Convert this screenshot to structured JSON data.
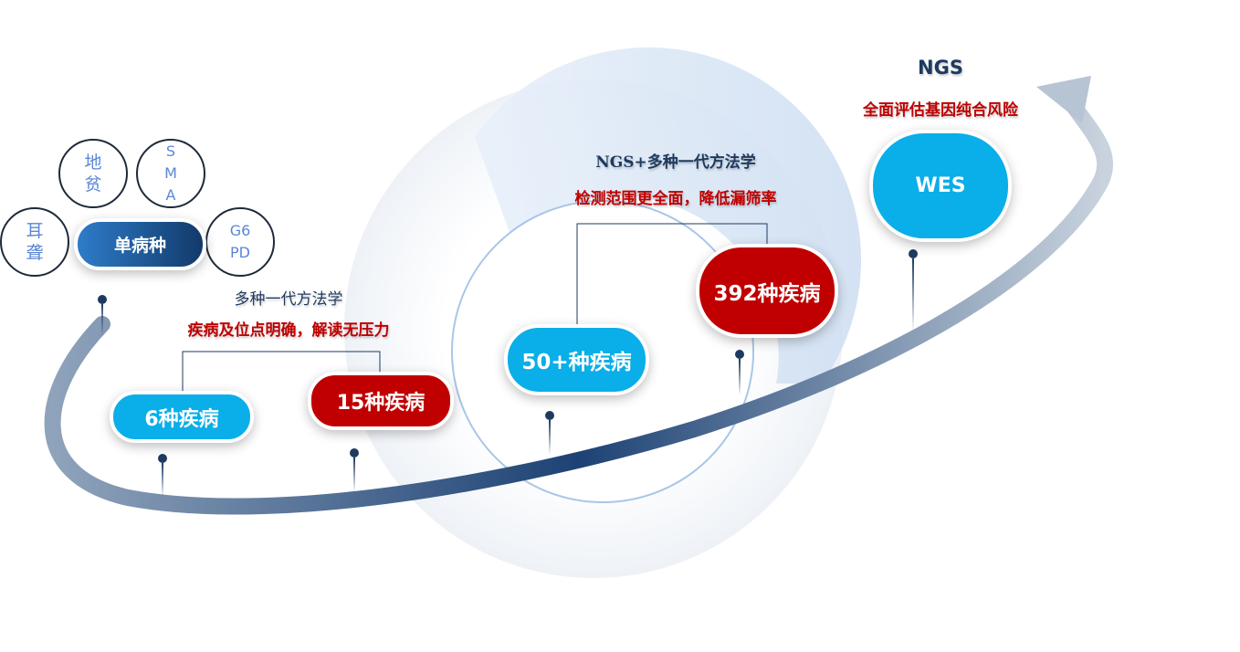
{
  "stage1": {
    "center_label": "单病种",
    "diseases": [
      "地贫",
      "SMA",
      "耳聋",
      "G6PD"
    ],
    "method": "多种一代方法学",
    "benefit": "疾病及位点明确，解读无压力",
    "panels": [
      "6种疾病",
      "15种疾病"
    ]
  },
  "stage2": {
    "method": "NGS+多种一代方法学",
    "benefit": "检测范围更全面，降低漏筛率",
    "panels": [
      "50+种疾病",
      "392种疾病"
    ]
  },
  "stage3": {
    "method": "NGS",
    "benefit": "全面评估基因纯合风险",
    "panel": "WES"
  },
  "colors": {
    "cyan": "#0aaee8",
    "red": "#c00000",
    "navy": "#1e3a5f"
  }
}
